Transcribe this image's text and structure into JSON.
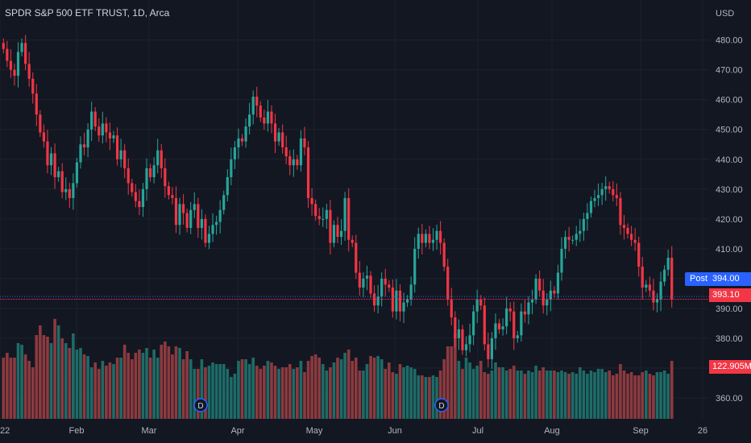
{
  "title": "SPDR S&P 500 ETF TRUST, 1D, Arca",
  "currency": "USD",
  "colors": {
    "up": "#26a69a",
    "down": "#f23645",
    "volume_up": "#1e6b67",
    "volume_down": "#8c3a3f",
    "grid": "#1e222d",
    "post": "#2962ff"
  },
  "post_label": "Post",
  "post_price": "394.00",
  "last_price": "393.10",
  "volume_value": "122.905M",
  "chart_data": {
    "type": "candlestick",
    "title": "SPDR S&P 500 ETF TRUST, 1D, Arca",
    "y_axis": {
      "ticks": [
        360,
        370,
        380,
        390,
        400,
        410,
        420,
        430,
        440,
        450,
        460,
        470,
        480
      ],
      "range": [
        353,
        488
      ]
    },
    "x_axis": {
      "ticks": [
        "22",
        "Feb",
        "Mar",
        "Apr",
        "May",
        "Jun",
        "Jul",
        "Aug",
        "Sep",
        "26"
      ]
    },
    "event_markers": [
      "D",
      "D"
    ],
    "close": [
      477,
      473,
      470,
      468,
      476,
      479,
      472,
      467,
      462,
      455,
      449,
      446,
      438,
      442,
      434,
      436,
      429,
      430,
      427,
      432,
      439,
      445,
      444,
      450,
      456,
      451,
      448,
      452,
      449,
      447,
      448,
      440,
      443,
      437,
      432,
      429,
      426,
      424,
      430,
      437,
      434,
      438,
      443,
      437,
      431,
      428,
      427,
      418,
      425,
      422,
      417,
      423,
      425,
      417,
      420,
      412,
      415,
      418,
      419,
      423,
      428,
      434,
      440,
      444,
      447,
      446,
      451,
      455,
      461,
      458,
      454,
      452,
      456,
      452,
      446,
      449,
      444,
      441,
      438,
      440,
      438,
      447,
      444,
      427,
      425,
      421,
      420,
      420,
      423,
      412,
      418,
      414,
      416,
      427,
      413,
      412,
      402,
      397,
      400,
      401,
      395,
      391,
      394,
      400,
      398,
      397,
      389,
      396,
      389,
      392,
      393,
      398,
      410,
      415,
      412,
      415,
      412,
      413,
      416,
      412,
      404,
      393,
      387,
      380,
      383,
      376,
      378,
      381,
      389,
      393,
      391,
      378,
      373,
      380,
      385,
      383,
      384,
      390,
      389,
      380,
      381,
      389,
      388,
      392,
      393,
      400,
      396,
      391,
      393,
      396,
      395,
      402,
      410,
      414,
      413,
      413,
      415,
      416,
      420,
      422,
      426,
      427,
      428,
      430,
      431,
      430,
      428,
      427,
      418,
      417,
      415,
      413,
      412,
      404,
      397,
      398,
      396,
      392,
      393,
      399,
      403,
      407,
      393
    ]
  },
  "volume_data": [
    38,
    41,
    38,
    38,
    47,
    46,
    40,
    36,
    32,
    52,
    58,
    52,
    51,
    47,
    62,
    58,
    50,
    47,
    44,
    53,
    43,
    44,
    40,
    39,
    32,
    35,
    31,
    36,
    33,
    35,
    34,
    38,
    38,
    46,
    41,
    37,
    41,
    43,
    41,
    44,
    38,
    43,
    38,
    46,
    48,
    45,
    40,
    45,
    44,
    37,
    42,
    37,
    31,
    31,
    37,
    32,
    33,
    35,
    34,
    34,
    34,
    31,
    26,
    28,
    36,
    37,
    37,
    34,
    38,
    33,
    31,
    33,
    36,
    35,
    33,
    31,
    32,
    32,
    34,
    31,
    32,
    36,
    29,
    36,
    39,
    40,
    38,
    34,
    30,
    32,
    35,
    38,
    37,
    41,
    43,
    36,
    38,
    30,
    30,
    34,
    39,
    38,
    39,
    37,
    31,
    35,
    29,
    28,
    34,
    32,
    33,
    32,
    31,
    27,
    27,
    26,
    26,
    27,
    26,
    30,
    37,
    45,
    45,
    53,
    36,
    31,
    38,
    35,
    31,
    33,
    36,
    29,
    28,
    30,
    35,
    32,
    32,
    30,
    31,
    33,
    30,
    30,
    28,
    30,
    29,
    33,
    30,
    32,
    30,
    30,
    30,
    29,
    30,
    29,
    28,
    29,
    28,
    32,
    30,
    28,
    30,
    29,
    31,
    31,
    29,
    30,
    27,
    28,
    34,
    30,
    28,
    29,
    27,
    27,
    29,
    30,
    28,
    27,
    29,
    29,
    30,
    28,
    36
  ]
}
